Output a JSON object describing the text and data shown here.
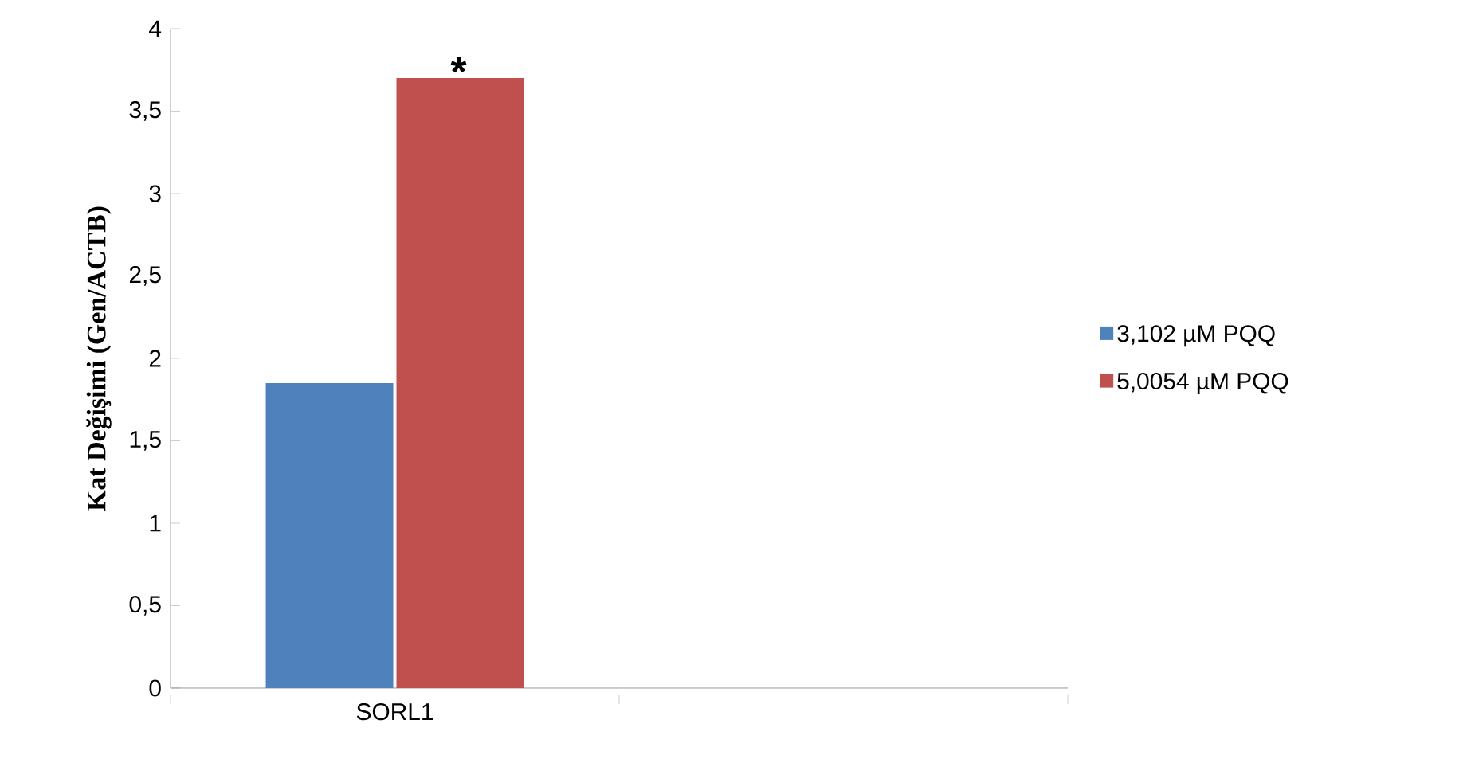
{
  "chart_data": {
    "type": "bar",
    "ylabel": "Kat Değişimi (Gen/ACTB)",
    "categories": [
      "SORL1",
      null
    ],
    "series": [
      {
        "name": "3,102  µM PQQ",
        "color": "#4f81bd",
        "values": [
          1.85,
          null
        ]
      },
      {
        "name": "5,0054 µM PQQ",
        "color": "#c0504d",
        "values": [
          3.7,
          null
        ]
      }
    ],
    "ylim": [
      0,
      4
    ],
    "yticks": [
      0,
      {
        "value": 0.5,
        "label": "0,5"
      },
      1,
      {
        "value": 1.5,
        "label": "1,5"
      },
      2,
      {
        "value": 2.5,
        "label": "2,5"
      },
      3,
      {
        "value": 3.5,
        "label": "3,5"
      },
      4
    ],
    "annotations": [
      {
        "text": "*",
        "x": "SORL1",
        "y": 3.7
      }
    ],
    "legend": "right",
    "grid": false
  }
}
